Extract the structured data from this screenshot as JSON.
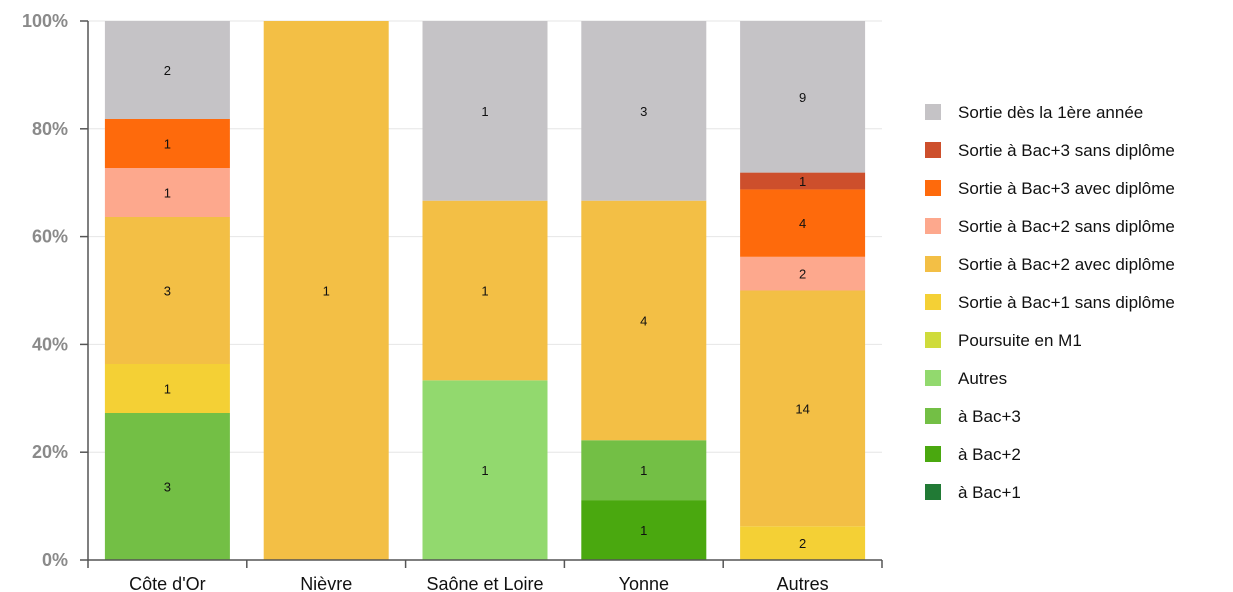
{
  "chart_data": {
    "type": "bar",
    "stacked": true,
    "normalized": true,
    "categories": [
      "Côte d'Or",
      "Nièvre",
      "Saône et Loire",
      "Yonne",
      "Autres"
    ],
    "y_tick_labels": [
      "0%",
      "20%",
      "40%",
      "60%",
      "80%",
      "100%"
    ],
    "ylim": [
      0,
      100
    ],
    "grid": true,
    "legend_position": "right",
    "series": [
      {
        "name": "à Bac+1",
        "color": "#217a35",
        "values": [
          0,
          0,
          0,
          0,
          0
        ]
      },
      {
        "name": "à Bac+2",
        "color": "#4aa80f",
        "values": [
          0,
          0,
          0,
          1,
          0
        ]
      },
      {
        "name": "à Bac+3",
        "color": "#73bf45",
        "values": [
          3,
          0,
          0,
          1,
          0
        ]
      },
      {
        "name": "Autres",
        "color": "#92d96e",
        "values": [
          0,
          0,
          1,
          0,
          0
        ]
      },
      {
        "name": "Poursuite en M1",
        "color": "#cfdb3b",
        "values": [
          0,
          0,
          0,
          0,
          0
        ]
      },
      {
        "name": "Sortie à Bac+1 sans diplôme",
        "color": "#f4d035",
        "values": [
          1,
          0,
          0,
          0,
          2
        ]
      },
      {
        "name": "Sortie à Bac+2 avec diplôme",
        "color": "#f3bf45",
        "values": [
          3,
          1,
          1,
          4,
          14
        ]
      },
      {
        "name": "Sortie à Bac+2 sans diplôme",
        "color": "#fda88d",
        "values": [
          1,
          0,
          0,
          0,
          2
        ]
      },
      {
        "name": "Sortie à Bac+3 avec diplôme",
        "color": "#fe6a0c",
        "values": [
          1,
          0,
          0,
          0,
          4
        ]
      },
      {
        "name": "Sortie à Bac+3 sans diplôme",
        "color": "#cd4f2c",
        "values": [
          0,
          0,
          0,
          0,
          1
        ]
      },
      {
        "name": "Sortie dès la 1ère année",
        "color": "#c5c3c6",
        "values": [
          2,
          0,
          1,
          3,
          9
        ]
      }
    ],
    "legend_order": [
      "Sortie dès la 1ère année",
      "Sortie à Bac+3 sans diplôme",
      "Sortie à Bac+3 avec diplôme",
      "Sortie à Bac+2 sans diplôme",
      "Sortie à Bac+2 avec diplôme",
      "Sortie à Bac+1 sans diplôme",
      "Poursuite en M1",
      "Autres",
      "à Bac+3",
      "à Bac+2",
      "à Bac+1"
    ]
  }
}
